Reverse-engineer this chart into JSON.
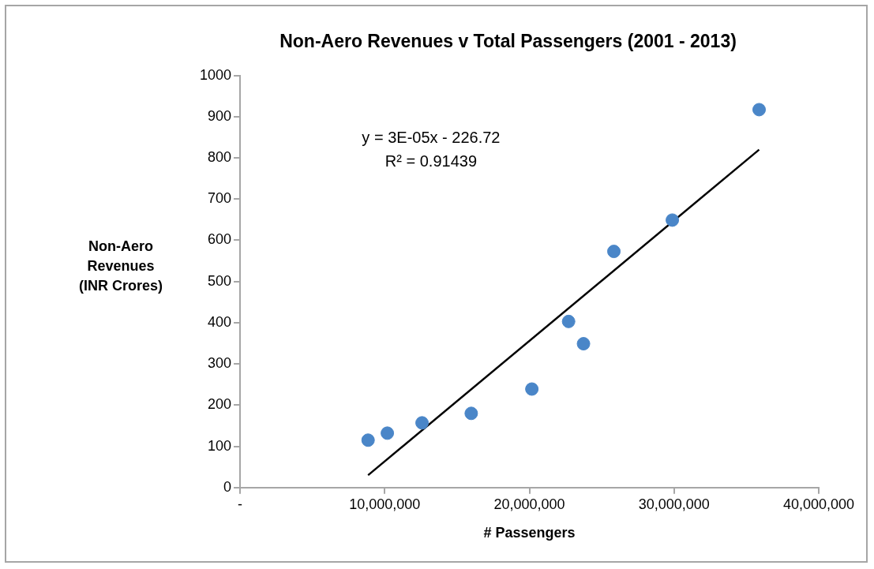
{
  "chart_data": {
    "type": "scatter",
    "title": "Non-Aero Revenues v Total Passengers (2001 - 2013)",
    "xlabel": "# Passengers",
    "ylabel": "Non-Aero Revenues (INR Crores)",
    "annotations": [
      "y = 3E-05x - 226.72",
      "R² = 0.91439"
    ],
    "series": [
      {
        "type": "scatter",
        "color": "#4a86c8",
        "marker": "circle",
        "x": [
          8850000,
          10180000,
          12580000,
          15980000,
          20170000,
          22710000,
          23740000,
          25840000,
          29880000,
          35880000
        ],
        "values": [
          115,
          132,
          157,
          180,
          239,
          403,
          349,
          573,
          649,
          917
        ]
      },
      {
        "type": "line",
        "color": "#000000",
        "marker": "none",
        "line_style": "solid",
        "x": [
          8850000,
          35880000
        ],
        "values": [
          30,
          820
        ]
      }
    ],
    "xlim": [
      0,
      40000000
    ],
    "xticks": [
      {
        "value": 0,
        "label": "-"
      },
      {
        "value": 10000000,
        "label": "10,000,000"
      },
      {
        "value": 20000000,
        "label": "20,000,000"
      },
      {
        "value": 30000000,
        "label": "30,000,000"
      },
      {
        "value": 40000000,
        "label": "40,000,000"
      }
    ],
    "ylim": [
      0,
      1000
    ],
    "yticks": [
      0,
      100,
      200,
      300,
      400,
      500,
      600,
      700,
      800,
      900,
      1000
    ],
    "grid": false,
    "legend": false
  }
}
